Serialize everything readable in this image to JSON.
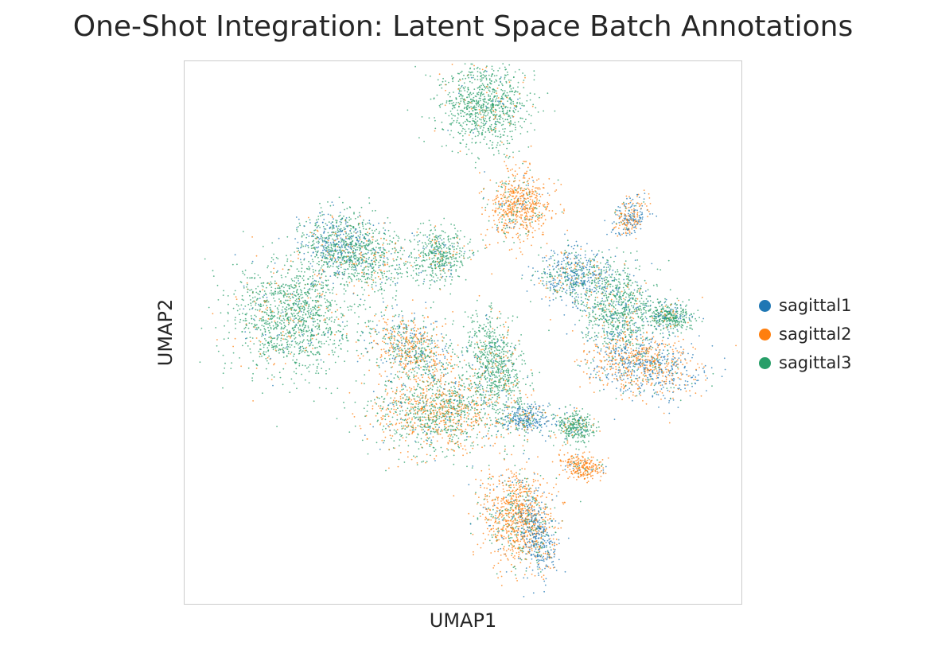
{
  "chart_data": {
    "type": "scatter",
    "title": "One-Shot Integration: Latent Space Batch Annotations",
    "xlabel": "UMAP1",
    "ylabel": "UMAP2",
    "ticks": "none",
    "grid": false,
    "legend_position": "right",
    "series": [
      {
        "name": "sagittal1",
        "color": "#1f77b4"
      },
      {
        "name": "sagittal2",
        "color": "#ff7f0e"
      },
      {
        "name": "sagittal3",
        "color": "#279e68"
      }
    ]
  }
}
